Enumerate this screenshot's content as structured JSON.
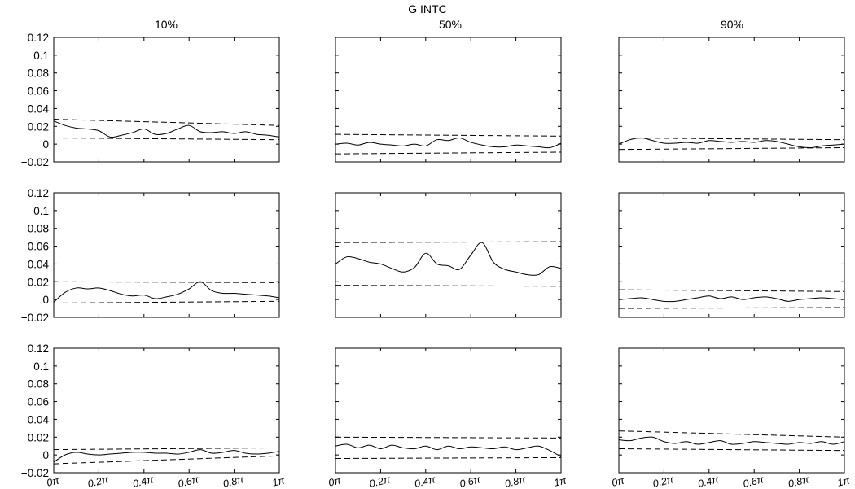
{
  "figure": {
    "suptitle": "G INTC",
    "column_titles": [
      "10%",
      "50%",
      "90%"
    ]
  },
  "chart_data": {
    "type": "line",
    "rows": 3,
    "cols": 3,
    "xlim": [
      0,
      1
    ],
    "ylim": [
      -0.02,
      0.12
    ],
    "yticks": [
      -0.02,
      0,
      0.02,
      0.04,
      0.06,
      0.08,
      0.1,
      0.12
    ],
    "ytick_labels": [
      "−0.02",
      "0",
      "0.02",
      "0.04",
      "0.06",
      "0.08",
      "0.1",
      "0.12"
    ],
    "xticks": [
      0,
      0.2,
      0.4,
      0.6,
      0.8,
      1
    ],
    "xtick_labels": [
      "0π",
      "0.2π",
      "0.4π",
      "0.6π",
      "0.8π",
      "1π"
    ],
    "x": [
      0,
      0.05,
      0.1,
      0.15,
      0.2,
      0.25,
      0.3,
      0.35,
      0.4,
      0.45,
      0.5,
      0.55,
      0.6,
      0.65,
      0.7,
      0.75,
      0.8,
      0.85,
      0.9,
      0.95,
      1.0
    ],
    "panels": [
      {
        "row": 0,
        "col": 0,
        "curve": [
          0.026,
          0.021,
          0.018,
          0.017,
          0.015,
          0.008,
          0.01,
          0.013,
          0.017,
          0.011,
          0.012,
          0.017,
          0.021,
          0.014,
          0.013,
          0.014,
          0.012,
          0.014,
          0.011,
          0.01,
          0.008
        ],
        "upper": [
          0.028,
          0.021
        ],
        "lower": [
          0.007,
          0.005
        ]
      },
      {
        "row": 0,
        "col": 1,
        "curve": [
          0.0,
          0.001,
          -0.001,
          0.002,
          0.0,
          -0.001,
          -0.002,
          0.0,
          -0.002,
          0.005,
          0.004,
          0.007,
          0.002,
          -0.001,
          -0.003,
          -0.003,
          -0.001,
          -0.002,
          -0.003,
          -0.004,
          0.001
        ],
        "upper": [
          0.011,
          0.009
        ],
        "lower": [
          -0.011,
          -0.009
        ]
      },
      {
        "row": 0,
        "col": 2,
        "curve": [
          0.0,
          0.005,
          0.007,
          0.004,
          0.001,
          0.001,
          0.002,
          0.001,
          0.004,
          0.003,
          0.002,
          0.003,
          0.002,
          0.004,
          0.003,
          0.0,
          -0.003,
          -0.004,
          -0.002,
          -0.001,
          0.0
        ],
        "upper": [
          0.007,
          0.005
        ],
        "lower": [
          -0.006,
          -0.004
        ]
      },
      {
        "row": 1,
        "col": 0,
        "curve": [
          -0.003,
          0.008,
          0.013,
          0.012,
          0.013,
          0.01,
          0.006,
          0.004,
          0.005,
          0.001,
          0.003,
          0.006,
          0.012,
          0.02,
          0.01,
          0.007,
          0.007,
          0.006,
          0.005,
          0.004,
          0.002
        ],
        "upper": [
          0.02,
          0.019
        ],
        "lower": [
          -0.004,
          -0.002
        ]
      },
      {
        "row": 1,
        "col": 1,
        "curve": [
          0.04,
          0.048,
          0.046,
          0.042,
          0.04,
          0.035,
          0.031,
          0.036,
          0.052,
          0.04,
          0.038,
          0.034,
          0.05,
          0.064,
          0.042,
          0.034,
          0.031,
          0.028,
          0.028,
          0.037,
          0.035
        ],
        "upper": [
          0.064,
          0.065
        ],
        "lower": [
          0.016,
          0.015
        ]
      },
      {
        "row": 1,
        "col": 2,
        "curve": [
          0.0,
          0.001,
          0.002,
          0.0,
          -0.002,
          -0.002,
          0.0,
          0.002,
          0.004,
          0.001,
          0.003,
          0.0,
          0.002,
          0.003,
          0.001,
          -0.002,
          0.0,
          0.001,
          0.002,
          0.001,
          0.0
        ],
        "upper": [
          0.011,
          0.009
        ],
        "lower": [
          -0.01,
          -0.009
        ]
      },
      {
        "row": 2,
        "col": 0,
        "curve": [
          -0.008,
          0.0,
          0.003,
          0.001,
          0.0,
          0.001,
          0.002,
          0.003,
          0.003,
          0.002,
          0.002,
          0.001,
          0.003,
          0.006,
          0.002,
          0.003,
          0.005,
          0.002,
          0.001,
          0.002,
          0.004
        ],
        "upper": [
          0.006,
          0.008
        ],
        "lower": [
          -0.01,
          -0.001
        ]
      },
      {
        "row": 2,
        "col": 1,
        "curve": [
          0.01,
          0.012,
          0.008,
          0.011,
          0.007,
          0.011,
          0.008,
          0.007,
          0.01,
          0.006,
          0.01,
          0.007,
          0.009,
          0.008,
          0.007,
          0.009,
          0.006,
          0.008,
          0.01,
          0.005,
          -0.002
        ],
        "upper": [
          0.02,
          0.019
        ],
        "lower": [
          -0.004,
          -0.003
        ]
      },
      {
        "row": 2,
        "col": 2,
        "curve": [
          0.017,
          0.016,
          0.019,
          0.02,
          0.015,
          0.013,
          0.015,
          0.012,
          0.014,
          0.016,
          0.012,
          0.013,
          0.015,
          0.014,
          0.013,
          0.012,
          0.014,
          0.013,
          0.015,
          0.012,
          0.015
        ],
        "upper": [
          0.027,
          0.02
        ],
        "lower": [
          0.007,
          0.005
        ]
      }
    ]
  }
}
